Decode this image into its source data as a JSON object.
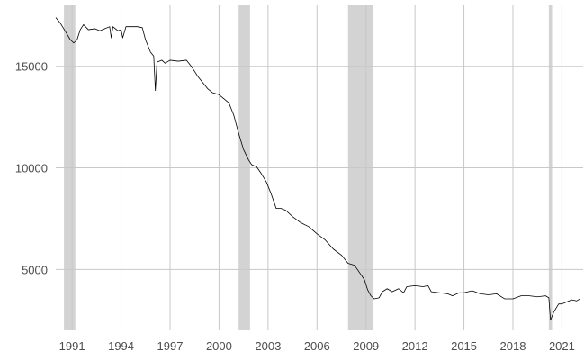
{
  "chart_data": {
    "type": "line",
    "title": "",
    "xlabel": "",
    "ylabel": "",
    "xlim": [
      1990.0,
      2022.3
    ],
    "ylim": [
      2000,
      18000
    ],
    "xticks": [
      1991,
      1994,
      1997,
      2000,
      2003,
      2006,
      2009,
      2012,
      2015,
      2018,
      2021
    ],
    "xtick_labels": [
      "1991",
      "1994",
      "1997",
      "2000",
      "2003",
      "2006",
      "2009",
      "2012",
      "2015",
      "2018",
      "2021"
    ],
    "yticks": [
      5000,
      10000,
      15000
    ],
    "ytick_labels": [
      "5000",
      "10000",
      "15000"
    ],
    "grid": true,
    "shaded_periods": [
      {
        "start": 1990.5,
        "end": 1991.2
      },
      {
        "start": 2001.2,
        "end": 2001.9
      },
      {
        "start": 2007.9,
        "end": 2009.4
      },
      {
        "start": 2020.2,
        "end": 2020.4
      }
    ],
    "series": [
      {
        "color": "#000000",
        "points": [
          [
            1990.0,
            17400
          ],
          [
            1990.3,
            17100
          ],
          [
            1990.6,
            16700
          ],
          [
            1990.9,
            16300
          ],
          [
            1991.1,
            16150
          ],
          [
            1991.3,
            16300
          ],
          [
            1991.5,
            16800
          ],
          [
            1991.7,
            17050
          ],
          [
            1992.0,
            16800
          ],
          [
            1992.4,
            16850
          ],
          [
            1992.7,
            16750
          ],
          [
            1993.0,
            16850
          ],
          [
            1993.3,
            16950
          ],
          [
            1993.4,
            16400
          ],
          [
            1993.5,
            16950
          ],
          [
            1993.8,
            16750
          ],
          [
            1994.0,
            16800
          ],
          [
            1994.1,
            16400
          ],
          [
            1994.3,
            16950
          ],
          [
            1994.6,
            16950
          ],
          [
            1995.0,
            16950
          ],
          [
            1995.3,
            16900
          ],
          [
            1995.5,
            16300
          ],
          [
            1995.8,
            15700
          ],
          [
            1996.0,
            15500
          ],
          [
            1996.1,
            13800
          ],
          [
            1996.2,
            15200
          ],
          [
            1996.5,
            15300
          ],
          [
            1996.7,
            15150
          ],
          [
            1997.0,
            15300
          ],
          [
            1997.5,
            15250
          ],
          [
            1998.0,
            15300
          ],
          [
            1998.3,
            15000
          ],
          [
            1998.7,
            14500
          ],
          [
            1999.0,
            14200
          ],
          [
            1999.3,
            13900
          ],
          [
            1999.6,
            13700
          ],
          [
            2000.0,
            13600
          ],
          [
            2000.3,
            13400
          ],
          [
            2000.6,
            13200
          ],
          [
            2000.9,
            12600
          ],
          [
            2001.2,
            11700
          ],
          [
            2001.5,
            10900
          ],
          [
            2001.8,
            10400
          ],
          [
            2002.0,
            10150
          ],
          [
            2002.3,
            10050
          ],
          [
            2002.6,
            9700
          ],
          [
            2002.9,
            9300
          ],
          [
            2003.2,
            8700
          ],
          [
            2003.5,
            8000
          ],
          [
            2003.8,
            8000
          ],
          [
            2004.1,
            7900
          ],
          [
            2004.5,
            7600
          ],
          [
            2005.0,
            7300
          ],
          [
            2005.5,
            7100
          ],
          [
            2006.0,
            6750
          ],
          [
            2006.5,
            6450
          ],
          [
            2007.0,
            6000
          ],
          [
            2007.5,
            5700
          ],
          [
            2007.9,
            5300
          ],
          [
            2008.3,
            5200
          ],
          [
            2008.6,
            4850
          ],
          [
            2008.9,
            4500
          ],
          [
            2009.1,
            4000
          ],
          [
            2009.3,
            3700
          ],
          [
            2009.5,
            3550
          ],
          [
            2009.8,
            3600
          ],
          [
            2010.0,
            3900
          ],
          [
            2010.3,
            4050
          ],
          [
            2010.6,
            3900
          ],
          [
            2011.0,
            4050
          ],
          [
            2011.3,
            3850
          ],
          [
            2011.5,
            4150
          ],
          [
            2012.0,
            4200
          ],
          [
            2012.5,
            4150
          ],
          [
            2012.8,
            4200
          ],
          [
            2013.0,
            3900
          ],
          [
            2013.5,
            3850
          ],
          [
            2014.0,
            3800
          ],
          [
            2014.3,
            3700
          ],
          [
            2014.7,
            3850
          ],
          [
            2015.0,
            3850
          ],
          [
            2015.5,
            3950
          ],
          [
            2016.0,
            3800
          ],
          [
            2016.5,
            3750
          ],
          [
            2017.0,
            3800
          ],
          [
            2017.5,
            3550
          ],
          [
            2018.0,
            3550
          ],
          [
            2018.5,
            3700
          ],
          [
            2019.0,
            3700
          ],
          [
            2019.5,
            3650
          ],
          [
            2020.0,
            3700
          ],
          [
            2020.2,
            3600
          ],
          [
            2020.3,
            2500
          ],
          [
            2020.5,
            2900
          ],
          [
            2020.8,
            3300
          ],
          [
            2021.0,
            3300
          ],
          [
            2021.3,
            3400
          ],
          [
            2021.6,
            3500
          ],
          [
            2021.9,
            3450
          ],
          [
            2022.1,
            3550
          ]
        ]
      }
    ]
  }
}
